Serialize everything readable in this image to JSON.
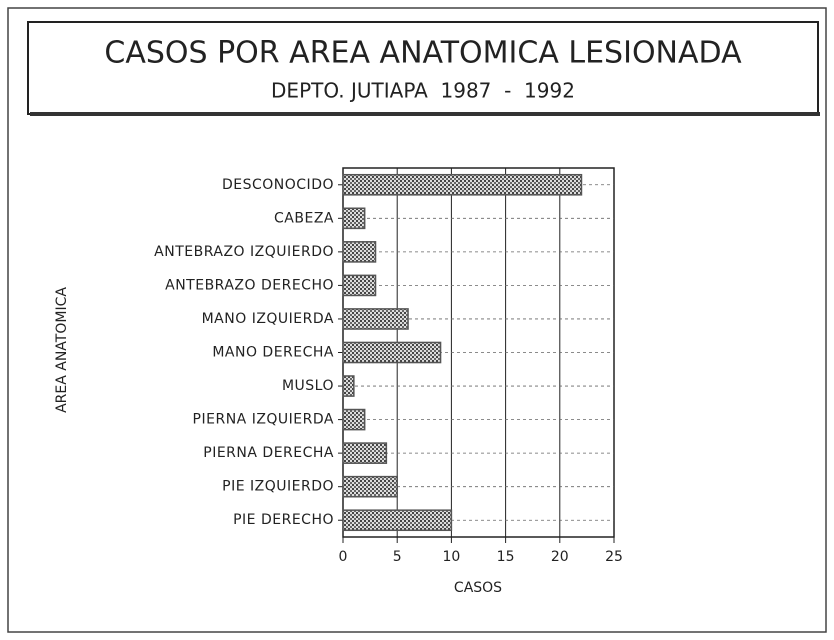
{
  "chart_data": {
    "type": "bar",
    "orientation": "horizontal",
    "title": "CASOS POR AREA ANATOMICA LESIONADA",
    "subtitle": "DEPTO. JUTIAPA  1987  -  1992",
    "x_label": "CASOS",
    "y_label": "AREA ANATOMICA",
    "categories": [
      "DESCONOCIDO",
      "CABEZA",
      "ANTEBRAZO IZQUIERDO",
      "ANTEBRAZO DERECHO",
      "MANO IZQUIERDA",
      "MANO DERECHA",
      "MUSLO",
      "PIERNA IZQUIERDA",
      "PIERNA DERECHA",
      "PIE IZQUIERDO",
      "PIE DERECHO"
    ],
    "values": [
      22,
      2,
      3,
      3,
      6,
      9,
      1,
      2,
      4,
      5,
      10
    ],
    "color": "#555555",
    "xlim": [
      0,
      25
    ],
    "xticks": [
      0,
      5,
      10,
      15,
      20,
      25
    ],
    "grid": true
  }
}
